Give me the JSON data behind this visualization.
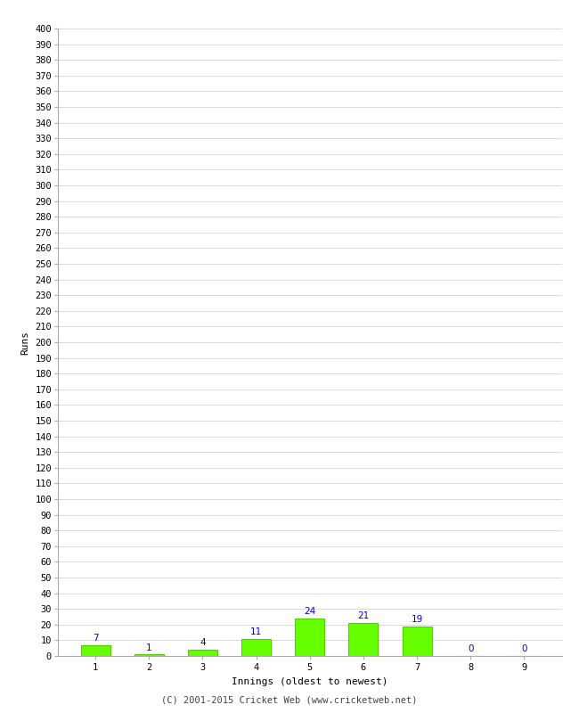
{
  "categories": [
    1,
    2,
    3,
    4,
    5,
    6,
    7,
    8,
    9
  ],
  "values": [
    7,
    1,
    4,
    11,
    24,
    21,
    19,
    0,
    0
  ],
  "bar_color": "#66ff00",
  "bar_edge_color": "#55cc00",
  "xlabel": "Innings (oldest to newest)",
  "ylabel": "Runs",
  "ylim": [
    0,
    400
  ],
  "ytick_step": 10,
  "label_color": "#0000cc",
  "label_fontsize": 7.5,
  "axis_label_fontsize": 8,
  "tick_fontsize": 7.5,
  "footer_text": "(C) 2001-2015 Cricket Web (www.cricketweb.net)",
  "footer_fontsize": 7.5,
  "background_color": "#ffffff",
  "grid_color": "#cccccc"
}
